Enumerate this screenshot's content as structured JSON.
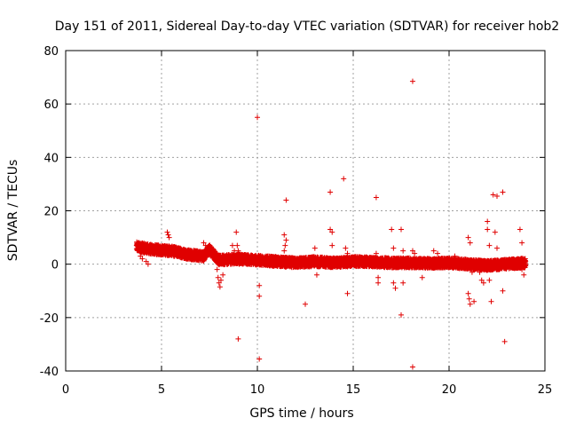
{
  "chart_data": {
    "type": "scatter",
    "title": "Day 151 of 2011, Sidereal Day-to-day VTEC variation (SDTVAR) for receiver hob2",
    "xlabel": "GPS time / hours",
    "ylabel": "SDTVAR / TECUs",
    "xlim": [
      0,
      25
    ],
    "ylim": [
      -40,
      80
    ],
    "xticks": [
      0,
      5,
      10,
      15,
      20,
      25
    ],
    "yticks": [
      -40,
      -20,
      0,
      20,
      40,
      60,
      80
    ],
    "grid": true,
    "marker": "+",
    "color": "#e00000",
    "band": {
      "description": "dense cluster of points forming a band around the trend",
      "trend": [
        [
          3.7,
          6.5
        ],
        [
          4.5,
          5.5
        ],
        [
          5.5,
          5.0
        ],
        [
          6.5,
          3.5
        ],
        [
          7.2,
          3.0
        ],
        [
          7.5,
          5.5
        ],
        [
          8.0,
          1.5
        ],
        [
          9.0,
          2.0
        ],
        [
          10.0,
          1.5
        ],
        [
          11.0,
          1.0
        ],
        [
          12.0,
          0.5
        ],
        [
          13.0,
          1.0
        ],
        [
          14.0,
          0.5
        ],
        [
          15.0,
          1.0
        ],
        [
          16.0,
          0.8
        ],
        [
          17.0,
          0.5
        ],
        [
          18.0,
          0.5
        ],
        [
          19.0,
          0.3
        ],
        [
          20.0,
          0.5
        ],
        [
          21.0,
          0.0
        ],
        [
          22.0,
          -0.5
        ],
        [
          23.0,
          0.0
        ],
        [
          24.0,
          0.5
        ]
      ],
      "half_width": 1.8
    },
    "excursions": [
      [
        3.8,
        8
      ],
      [
        3.9,
        3
      ],
      [
        4.0,
        2
      ],
      [
        4.2,
        1
      ],
      [
        4.3,
        0
      ],
      [
        5.3,
        12
      ],
      [
        5.35,
        11
      ],
      [
        5.4,
        10
      ],
      [
        7.2,
        8
      ],
      [
        7.3,
        7
      ],
      [
        7.9,
        -2
      ],
      [
        7.95,
        -5
      ],
      [
        8.0,
        -7
      ],
      [
        8.05,
        -8.5
      ],
      [
        8.1,
        -6
      ],
      [
        8.2,
        -4
      ],
      [
        8.5,
        2
      ],
      [
        8.7,
        7
      ],
      [
        8.8,
        5
      ],
      [
        8.9,
        12
      ],
      [
        8.95,
        7
      ],
      [
        9.0,
        5
      ],
      [
        9.0,
        -28
      ],
      [
        9.05,
        0
      ],
      [
        10.0,
        55
      ],
      [
        10.1,
        -8
      ],
      [
        10.1,
        -12
      ],
      [
        10.1,
        -35.5
      ],
      [
        11.4,
        11
      ],
      [
        11.5,
        9
      ],
      [
        11.5,
        24
      ],
      [
        11.45,
        7
      ],
      [
        11.4,
        5
      ],
      [
        12.5,
        -15
      ],
      [
        13.0,
        6
      ],
      [
        13.1,
        -4
      ],
      [
        13.8,
        27
      ],
      [
        13.8,
        13
      ],
      [
        13.9,
        12
      ],
      [
        13.9,
        7
      ],
      [
        14.5,
        32
      ],
      [
        14.6,
        6
      ],
      [
        14.7,
        4
      ],
      [
        14.7,
        -11
      ],
      [
        16.2,
        25
      ],
      [
        16.2,
        4
      ],
      [
        16.3,
        -5
      ],
      [
        16.3,
        -7
      ],
      [
        17.0,
        13
      ],
      [
        17.1,
        6
      ],
      [
        17.1,
        -7
      ],
      [
        17.2,
        -9
      ],
      [
        17.5,
        13
      ],
      [
        17.5,
        -19
      ],
      [
        17.6,
        5
      ],
      [
        17.6,
        -7
      ],
      [
        18.1,
        68.5
      ],
      [
        18.1,
        -38.5
      ],
      [
        18.1,
        5
      ],
      [
        18.2,
        4
      ],
      [
        18.5,
        2
      ],
      [
        18.6,
        -5
      ],
      [
        19.2,
        5
      ],
      [
        19.4,
        4
      ],
      [
        20.3,
        3
      ],
      [
        20.4,
        1
      ],
      [
        21.0,
        10
      ],
      [
        21.1,
        8
      ],
      [
        21.0,
        -11
      ],
      [
        21.05,
        -13
      ],
      [
        21.1,
        -15
      ],
      [
        21.2,
        -3
      ],
      [
        21.3,
        -14
      ],
      [
        21.6,
        -3
      ],
      [
        21.7,
        -6
      ],
      [
        21.8,
        -7
      ],
      [
        22.0,
        16
      ],
      [
        22.0,
        13
      ],
      [
        22.1,
        7
      ],
      [
        22.1,
        -6
      ],
      [
        22.2,
        -14
      ],
      [
        22.3,
        26
      ],
      [
        22.5,
        25.5
      ],
      [
        22.4,
        12
      ],
      [
        22.5,
        6
      ],
      [
        22.8,
        27
      ],
      [
        22.8,
        -10
      ],
      [
        22.9,
        -29
      ],
      [
        23.7,
        13
      ],
      [
        23.8,
        8
      ],
      [
        23.8,
        -2
      ],
      [
        23.9,
        -4
      ],
      [
        23.95,
        1
      ]
    ]
  }
}
